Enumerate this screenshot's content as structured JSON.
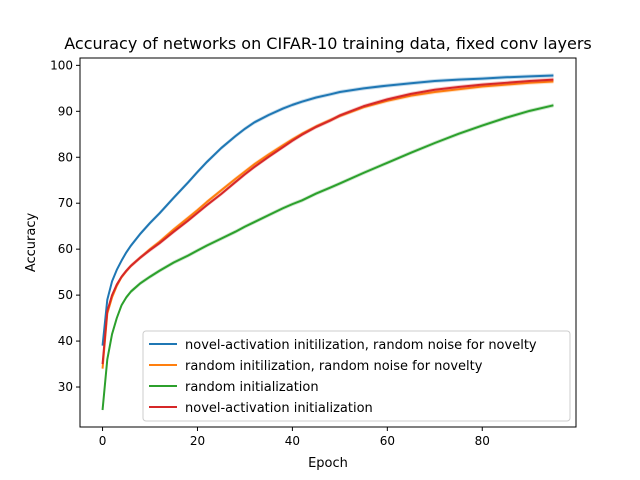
{
  "chart_data": {
    "type": "line",
    "title": "Accuracy of networks on CIFAR-10 training data, fixed conv layers",
    "xlabel": "Epoch",
    "ylabel": "Accuracy",
    "xlim": [
      -4.75,
      99.75
    ],
    "ylim": [
      21.3,
      101.6
    ],
    "xticks": [
      0,
      20,
      40,
      60,
      80
    ],
    "yticks": [
      30,
      40,
      50,
      60,
      70,
      80,
      90,
      100
    ],
    "grid": false,
    "legend_position": "lower-right",
    "series": [
      {
        "name": "novel-activation initilization, random noise for novelty",
        "color": "#1f77b4",
        "x": [
          0,
          1,
          2,
          3,
          4,
          5,
          6,
          8,
          10,
          12,
          15,
          18,
          20,
          22,
          25,
          28,
          30,
          32,
          35,
          38,
          40,
          42,
          45,
          48,
          50,
          55,
          60,
          65,
          70,
          75,
          80,
          85,
          90,
          95
        ],
        "y": [
          39,
          49,
          53,
          55.5,
          57.5,
          59.3,
          60.8,
          63.4,
          65.7,
          67.8,
          71.2,
          74.5,
          76.8,
          79,
          82,
          84.6,
          86.2,
          87.6,
          89.2,
          90.6,
          91.4,
          92.1,
          93,
          93.7,
          94.2,
          95,
          95.6,
          96.1,
          96.6,
          96.9,
          97.1,
          97.4,
          97.6,
          97.8
        ]
      },
      {
        "name": "random initilization, random noise for novelty",
        "color": "#ff7f0e",
        "x": [
          0,
          1,
          2,
          3,
          4,
          5,
          6,
          8,
          10,
          12,
          15,
          18,
          20,
          22,
          25,
          28,
          30,
          32,
          35,
          38,
          40,
          42,
          45,
          48,
          50,
          55,
          60,
          65,
          70,
          75,
          80,
          85,
          90,
          95
        ],
        "y": [
          34,
          46,
          49.5,
          52,
          53.9,
          55.2,
          56.4,
          58.2,
          60,
          61.6,
          64.3,
          66.8,
          68.5,
          70.3,
          72.8,
          75.3,
          76.9,
          78.5,
          80.6,
          82.6,
          83.9,
          85.1,
          86.7,
          88.1,
          89,
          90.9,
          92.3,
          93.4,
          94.2,
          94.8,
          95.4,
          95.8,
          96.2,
          96.5
        ]
      },
      {
        "name": "random initialization",
        "color": "#2ca02c",
        "x": [
          0,
          1,
          2,
          3,
          4,
          5,
          6,
          8,
          10,
          12,
          15,
          18,
          20,
          22,
          25,
          28,
          30,
          32,
          35,
          38,
          40,
          42,
          45,
          48,
          50,
          55,
          60,
          65,
          70,
          75,
          80,
          85,
          90,
          95
        ],
        "y": [
          25,
          36,
          41.5,
          45,
          47.8,
          49.5,
          50.8,
          52.6,
          54,
          55.3,
          57.1,
          58.6,
          59.7,
          60.8,
          62.3,
          63.8,
          64.9,
          65.9,
          67.4,
          68.9,
          69.8,
          70.6,
          72.1,
          73.4,
          74.3,
          76.6,
          78.8,
          81,
          83.1,
          85.1,
          86.9,
          88.6,
          90.1,
          91.3
        ]
      },
      {
        "name": "novel-activation initialization",
        "color": "#d62728",
        "x": [
          0,
          1,
          2,
          3,
          4,
          5,
          6,
          8,
          10,
          12,
          15,
          18,
          20,
          22,
          25,
          28,
          30,
          32,
          35,
          38,
          40,
          42,
          45,
          48,
          50,
          55,
          60,
          65,
          70,
          75,
          80,
          85,
          90,
          95
        ],
        "y": [
          35,
          46.5,
          50,
          52.3,
          54,
          55.3,
          56.4,
          58.2,
          59.8,
          61.3,
          63.8,
          66.2,
          67.9,
          69.6,
          72,
          74.6,
          76.3,
          77.9,
          80.1,
          82.2,
          83.6,
          84.9,
          86.6,
          88,
          89.1,
          91.1,
          92.6,
          93.8,
          94.7,
          95.3,
          95.8,
          96.2,
          96.6,
          96.9
        ]
      }
    ]
  }
}
